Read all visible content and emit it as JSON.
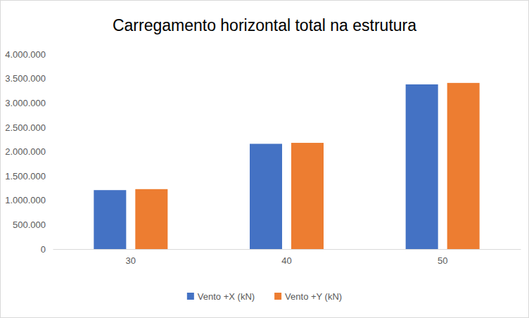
{
  "chart_data": {
    "type": "bar",
    "title": "Carregamento horizontal total na estrutura",
    "categories": [
      "30",
      "40",
      "50"
    ],
    "series": [
      {
        "name": "Vento +X (kN)",
        "color": "#4472c4",
        "values": [
          1210000,
          2160000,
          3380000
        ]
      },
      {
        "name": "Vento +Y (kN)",
        "color": "#ed7d31",
        "values": [
          1230000,
          2180000,
          3410000
        ]
      }
    ],
    "ylim": [
      0,
      4000000
    ],
    "yticks": [
      0,
      {
        "value": 500000,
        "label": "500.000"
      },
      {
        "value": 1000000,
        "label": "1.000.000"
      },
      {
        "value": 1500000,
        "label": "1.500.000"
      },
      {
        "value": 2000000,
        "label": "2.000.000"
      },
      {
        "value": 2500000,
        "label": "2.500.000"
      },
      {
        "value": 3000000,
        "label": "3.000.000"
      },
      {
        "value": 3500000,
        "label": "3.500.000"
      },
      {
        "value": 4000000,
        "label": "4.000.000"
      }
    ],
    "grid": false,
    "legend": "bottom"
  }
}
